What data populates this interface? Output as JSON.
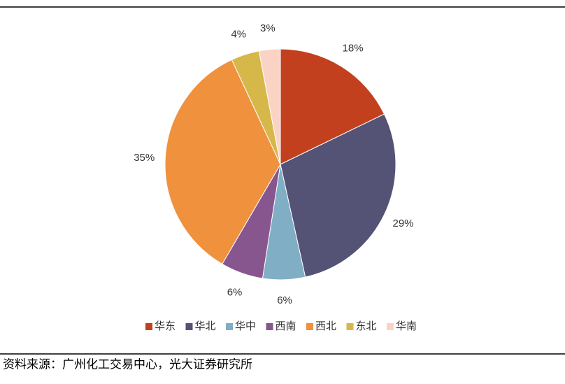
{
  "chart_data": {
    "type": "pie",
    "categories": [
      "华东",
      "华北",
      "华中",
      "西南",
      "西北",
      "东北",
      "华南"
    ],
    "values": [
      18,
      29,
      6,
      6,
      35,
      4,
      3
    ],
    "value_labels": [
      "18%",
      "29%",
      "6%",
      "6%",
      "35%",
      "4%",
      "3%"
    ],
    "colors": [
      "#c3401f",
      "#545275",
      "#80aec4",
      "#87568f",
      "#f0913e",
      "#d6b84a",
      "#fbd3c5"
    ],
    "legend": "bottom",
    "source": "资料来源：广州化工交易中心，光大证券研究所"
  }
}
